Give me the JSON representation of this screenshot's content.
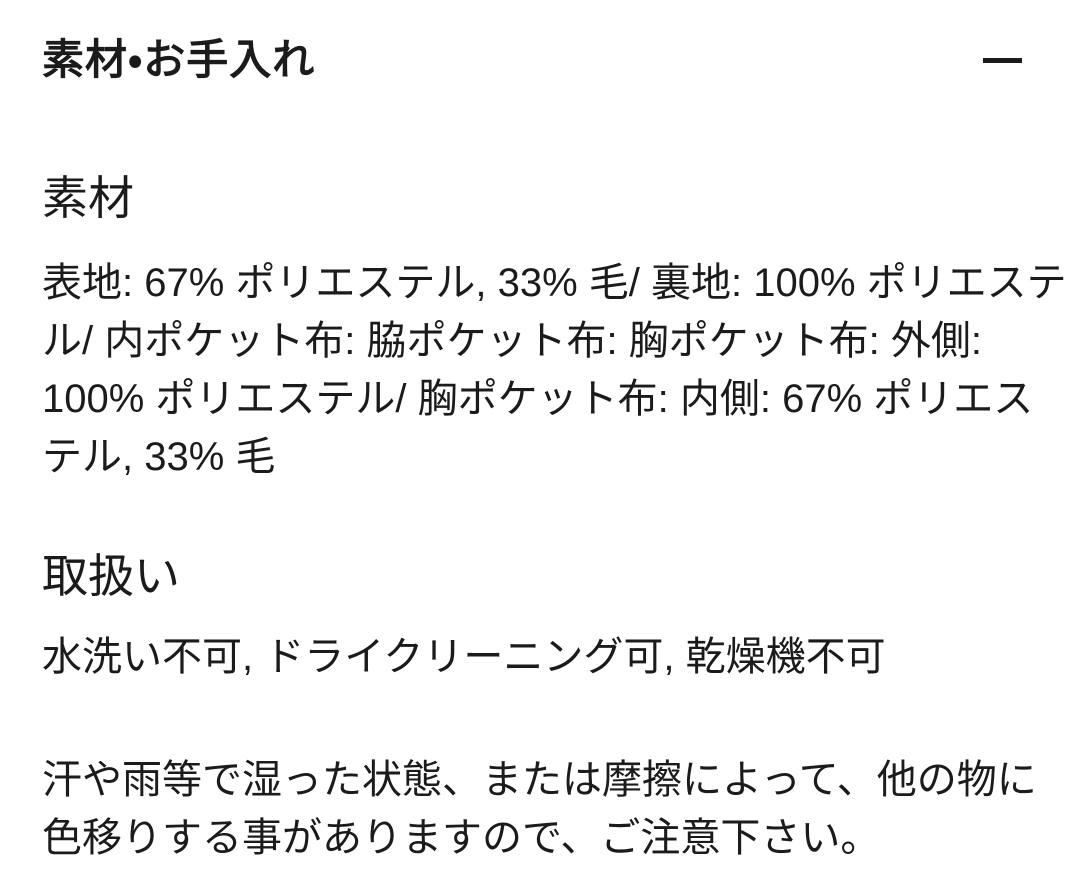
{
  "colors": {
    "text": "#1b1b1b",
    "background": "#ffffff"
  },
  "accordion": {
    "title": "素材・お手入れ",
    "state": "expanded",
    "collapse_icon": "minus-icon"
  },
  "material": {
    "heading": "素材",
    "lines": [
      "表地: 67% ポリエステル, 33% 毛/ 裏地: 100% ポリエステ",
      "ル/ 内ポケット布: 脇ポケット布: 胸ポケット布: 外側:",
      "100% ポリエステル/ 胸ポケット布: 内側: 67% ポリエス",
      "テル, 33% 毛"
    ]
  },
  "care": {
    "heading": "取扱い",
    "instructions": "水洗い不可, ドライクリーニング可, 乾燥機不可",
    "caution_lines": [
      "汗や雨等で湿った状態、または摩擦によって、他の物に",
      "色移りする事がありますので、ご注意下さい。"
    ]
  }
}
